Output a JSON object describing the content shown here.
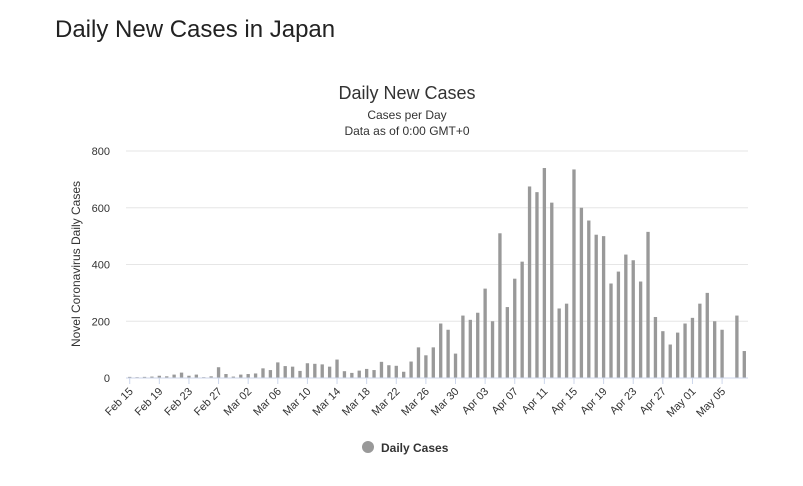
{
  "page": {
    "heading": "Daily New Cases in Japan"
  },
  "chart_data": {
    "type": "bar",
    "title": "Daily New Cases",
    "subtitle_lines": [
      "Cases per Day",
      "Data as of 0:00 GMT+0"
    ],
    "ylabel": "Novel Coronavirus Daily Cases",
    "xlabel": "",
    "ylim": [
      0,
      800
    ],
    "yticks": [
      0,
      200,
      400,
      600,
      800
    ],
    "grid": true,
    "legend_position": "bottom-center",
    "bar_color": "#999999",
    "series": [
      {
        "name": "Daily Cases"
      }
    ],
    "categories": [
      "Feb 15",
      "Feb 16",
      "Feb 17",
      "Feb 18",
      "Feb 19",
      "Feb 20",
      "Feb 21",
      "Feb 22",
      "Feb 23",
      "Feb 24",
      "Feb 25",
      "Feb 26",
      "Feb 27",
      "Feb 28",
      "Feb 29",
      "Mar 01",
      "Mar 02",
      "Mar 03",
      "Mar 04",
      "Mar 05",
      "Mar 06",
      "Mar 07",
      "Mar 08",
      "Mar 09",
      "Mar 10",
      "Mar 11",
      "Mar 12",
      "Mar 13",
      "Mar 14",
      "Mar 15",
      "Mar 16",
      "Mar 17",
      "Mar 18",
      "Mar 19",
      "Mar 20",
      "Mar 21",
      "Mar 22",
      "Mar 23",
      "Mar 24",
      "Mar 25",
      "Mar 26",
      "Mar 27",
      "Mar 28",
      "Mar 29",
      "Mar 30",
      "Mar 31",
      "Apr 01",
      "Apr 02",
      "Apr 03",
      "Apr 04",
      "Apr 05",
      "Apr 06",
      "Apr 07",
      "Apr 08",
      "Apr 09",
      "Apr 10",
      "Apr 11",
      "Apr 12",
      "Apr 13",
      "Apr 14",
      "Apr 15",
      "Apr 16",
      "Apr 17",
      "Apr 18",
      "Apr 19",
      "Apr 20",
      "Apr 21",
      "Apr 22",
      "Apr 23",
      "Apr 24",
      "Apr 25",
      "Apr 26",
      "Apr 27",
      "Apr 28",
      "Apr 29",
      "Apr 30",
      "May 01",
      "May 02",
      "May 03",
      "May 04",
      "May 05",
      "May 06",
      "May 07",
      "May 08"
    ],
    "values": [
      4,
      3,
      4,
      5,
      8,
      6,
      12,
      19,
      8,
      12,
      3,
      6,
      38,
      14,
      5,
      12,
      14,
      16,
      34,
      28,
      55,
      42,
      40,
      25,
      52,
      50,
      48,
      40,
      65,
      24,
      18,
      26,
      32,
      28,
      57,
      45,
      43,
      22,
      58,
      108,
      80,
      108,
      192,
      170,
      86,
      220,
      205,
      230,
      315,
      200,
      510,
      250,
      350,
      410,
      675,
      655,
      740,
      618,
      245,
      262,
      735,
      600,
      555,
      505,
      500,
      333,
      375,
      435,
      415,
      340,
      515,
      215,
      165,
      118,
      160,
      192,
      212,
      262,
      300,
      200,
      170,
      0,
      220,
      95
    ],
    "x_tick_labels": [
      "Feb 15",
      "Feb 19",
      "Feb 23",
      "Feb 27",
      "Mar 02",
      "Mar 06",
      "Mar 10",
      "Mar 14",
      "Mar 18",
      "Mar 22",
      "Mar 26",
      "Mar 30",
      "Apr 03",
      "Apr 07",
      "Apr 11",
      "Apr 15",
      "Apr 19",
      "Apr 23",
      "Apr 27",
      "May 01",
      "May 05"
    ]
  }
}
